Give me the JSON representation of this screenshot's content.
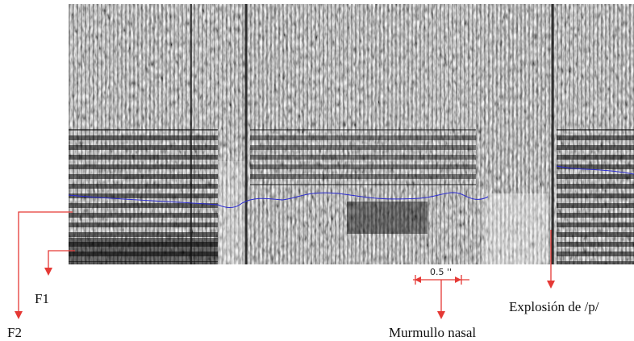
{
  "annotations": {
    "f2": "F2",
    "f1": "F1",
    "scale": "0.5 ''",
    "murmullo": "Murmullo nasal",
    "explosion": "Explosión de /p/"
  }
}
